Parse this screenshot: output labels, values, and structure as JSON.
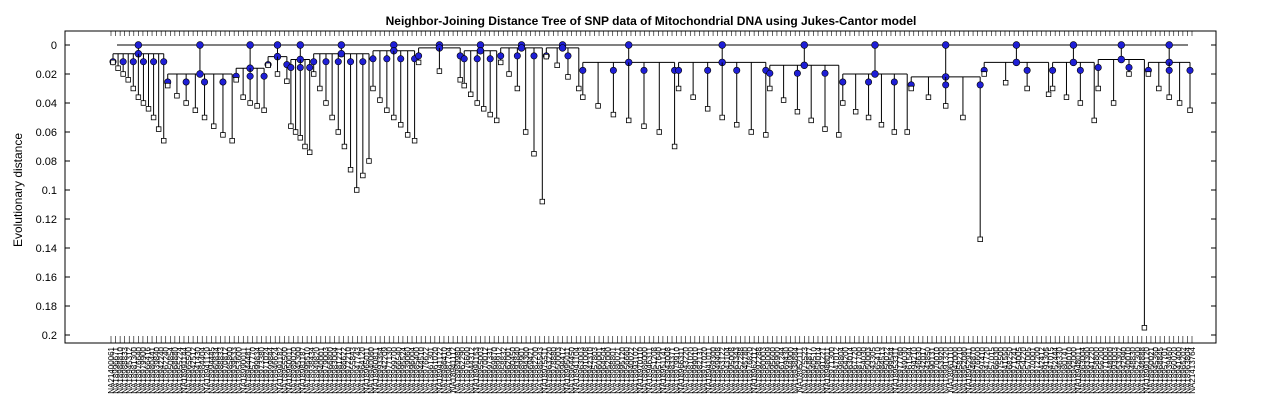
{
  "chart_data": {
    "type": "dendrogram",
    "title": "Neighbor-Joining Distance Tree of SNP data of Mitochondrial DNA using Jukes-Cantor model",
    "xlabel": "",
    "ylabel": "Evolutionary distance",
    "ylim": [
      0,
      0.205
    ],
    "y_reversed": true,
    "yticks": [
      0,
      0.02,
      0.04,
      0.06,
      0.08,
      0.1,
      0.12,
      0.14,
      0.16,
      0.18,
      0.2
    ],
    "ytick_labels": [
      "0",
      "0.02",
      "0.04",
      "0.06",
      "0.08",
      "0.1",
      "0.12",
      "0.14",
      "0.16",
      "0.18",
      "0.2"
    ],
    "leaf_count": 238,
    "grid": false,
    "colors": {
      "internal_node": "#1f1fd6",
      "leaf": "#ffffff",
      "branch": "#000000"
    },
    "leaf_labels": [
      "NA21400061",
      "NA18996671",
      "NA18988810",
      "NA18988833",
      "NA18945312",
      "NA18981300",
      "NA18976640",
      "NA18979900",
      "NA18966416",
      "NA18980441",
      "NA18939840",
      "NA18942240",
      "NA18962240",
      "NA18950854",
      "NA18968880",
      "NA18955224",
      "NA18991144",
      "NA18965500",
      "NA18942512",
      "NA18941430",
      "NA18984404",
      "NA18941120",
      "NA18994445",
      "NA18960834",
      "NA18988833",
      "NA18970812",
      "NA18985800",
      "NA18939533",
      "NA18953600",
      "NA18990011",
      "NA18944481",
      "NA18957770",
      "NA18999834",
      "NA18973380",
      "NA18971024",
      "NA18999844",
      "NA18946624",
      "NA18991182",
      "NA18955500",
      "NA18950011",
      "NA18989020",
      "NA18945300",
      "NA18981187",
      "NA18995510",
      "NA18938434",
      "NA18949820",
      "NA18940001",
      "NA18979003",
      "NA18966800",
      "NA18983004",
      "NA18981221",
      "NA18986622",
      "NA18972210",
      "NA18955843",
      "NA18947743",
      "NA18964120",
      "NA18965011",
      "NA18940060",
      "NA18960811",
      "NA18993354",
      "NA18942209",
      "NA18977130",
      "NA18999700",
      "NA18966540",
      "NA18995524",
      "NA18939060",
      "NA18996004",
      "NA18985400",
      "NA18944510",
      "NA18976622",
      "NA18961301",
      "NA18961020",
      "NA18941122",
      "NA18986410",
      "NA18987704",
      "NA18941112",
      "NA18989980",
      "NA18962290",
      "NA18976600",
      "NA18944312",
      "NA18991153",
      "NA18955003",
      "NA18970012",
      "NA18997331",
      "NA18969870",
      "NA18989912",
      "NA18958832",
      "NA18962001",
      "NA18980450",
      "NA18993840",
      "NA18989901",
      "NA18994300",
      "NA18969421",
      "NA18982200",
      "NA18985543",
      "NA18975511",
      "NA18963220",
      "NA18978880",
      "NA18950003",
      "NA18994412",
      "NA18995011",
      "NA18964450",
      "NA18941104",
      "NA18963003",
      "NA18991008",
      "NA18942310",
      "NA18957803",
      "NA18960001",
      "NA18964504",
      "NA18952000",
      "NA18988801",
      "NA18980021",
      "NA18995120",
      "NA18956660",
      "NA18940022",
      "NA18993102",
      "NA18970110",
      "NA18986000",
      "NA18946311",
      "NA18951208",
      "NA18957640",
      "NA18951141",
      "NA18943008",
      "NA18983371",
      "NA18979910",
      "NA18966311",
      "NA18943220",
      "NA18981020",
      "NA18999010",
      "NA18982131",
      "NA18977020",
      "NA18941011",
      "NA18969300",
      "NA18949408",
      "NA18963122",
      "NA18943104",
      "NA18995008",
      "NA18963343",
      "NA18952288",
      "NA18945780",
      "NA18976820",
      "NA18962112",
      "NA18992288",
      "NA18980003",
      "NA18958009",
      "NA18995600",
      "NA18996900",
      "NA18961244",
      "NA18969430",
      "NA18944900",
      "NA18938884",
      "NA18952111",
      "NA18975523",
      "NA18958877",
      "NA18940510",
      "NA18958014",
      "NA18991221",
      "NA18988011",
      "NA18971300",
      "NA18947012",
      "NA18998804",
      "NA18964200",
      "NA18963014",
      "NA18967720",
      "NA18987700",
      "NA18954030",
      "NA18950003",
      "NA18943305",
      "NA18965410",
      "NA18984513",
      "NA18950022",
      "NA18999544",
      "NA18953311",
      "NA18977760",
      "NA18949030",
      "NA18961544",
      "NA18994210",
      "NA18946630",
      "NA18942017",
      "NA18943850",
      "NA18990131",
      "NA18970010",
      "NA18953920",
      "NA18991320",
      "NA18961110",
      "NA18942000",
      "NA18958210",
      "NA18952080",
      "NA18952911",
      "NA18946870",
      "NA18976600",
      "NA18997410",
      "NA18947720",
      "NA18957015",
      "NA18966030",
      "NA18975500",
      "NA18941550",
      "NA18968250",
      "NA18971241",
      "NA18954005",
      "NA18954220",
      "NA18957005",
      "NA18970001",
      "NA18972200",
      "NA18942412",
      "NA18991305",
      "NA18947015",
      "NA18952444",
      "NA18946330",
      "NA18980141",
      "NA18968010",
      "NA18942000",
      "NA18948011",
      "NA18963004",
      "NA18983300",
      "NA18941220",
      "NA18958800",
      "NA18956200",
      "NA18971003",
      "NA18948000",
      "NA18993003",
      "NA18953302",
      "NA18942940",
      "NA18940010",
      "NA18948830",
      "NA18952300",
      "NA18948888",
      "NA18991120",
      "NA18950021",
      "NA18945360",
      "NA18968845",
      "NA18957701",
      "NA18939460",
      "NA18960020",
      "NA18941400",
      "NA18965202",
      "NA18963804",
      "NA21413764"
    ],
    "clades": [
      {
        "x1": 0,
        "x2": 24,
        "join": 0.006,
        "tips": [
          0.012,
          0.016,
          0.02,
          0.024,
          0.03,
          0.036,
          0.04,
          0.044,
          0.05,
          0.058,
          0.066
        ]
      },
      {
        "x1": 24,
        "x2": 52,
        "join": 0.02,
        "tips": [
          0.028,
          0.035,
          0.04,
          0.045,
          0.05,
          0.056,
          0.062,
          0.066
        ]
      },
      {
        "x1": 52,
        "x2": 66,
        "join": 0.016,
        "tips": [
          0.024,
          0.036,
          0.04,
          0.042,
          0.045
        ]
      },
      {
        "x1": 66,
        "x2": 76,
        "join": 0.008,
        "tips": [
          0.014,
          0.02,
          0.025
        ]
      },
      {
        "x1": 76,
        "x2": 86,
        "join": 0.01,
        "tips": [
          0.056,
          0.06,
          0.064,
          0.07,
          0.074
        ]
      },
      {
        "x1": 86,
        "x2": 110,
        "join": 0.006,
        "tips": [
          0.02,
          0.03,
          0.04,
          0.05,
          0.06,
          0.07,
          0.086,
          0.1,
          0.09,
          0.08
        ]
      },
      {
        "x1": 110,
        "x2": 130,
        "join": 0.004,
        "tips": [
          0.03,
          0.038,
          0.045,
          0.05,
          0.055,
          0.062,
          0.066
        ]
      },
      {
        "x1": 130,
        "x2": 150,
        "join": 0.002,
        "tips": [
          0.012,
          0.018,
          0.024
        ]
      },
      {
        "x1": 150,
        "x2": 165,
        "join": 0.004,
        "tips": [
          0.028,
          0.034,
          0.04,
          0.044,
          0.048,
          0.052
        ]
      },
      {
        "x1": 165,
        "x2": 185,
        "join": 0.002,
        "tips": [
          0.012,
          0.02,
          0.03,
          0.06,
          0.075,
          0.108
        ]
      },
      {
        "x1": 185,
        "x2": 200,
        "join": 0.002,
        "tips": [
          0.008,
          0.014,
          0.022,
          0.03
        ]
      },
      {
        "x1": 200,
        "x2": 240,
        "join": 0.012,
        "tips": [
          0.036,
          0.042,
          0.048,
          0.052,
          0.056,
          0.06,
          0.07
        ]
      },
      {
        "x1": 240,
        "x2": 280,
        "join": 0.012,
        "tips": [
          0.03,
          0.036,
          0.044,
          0.05,
          0.055,
          0.06,
          0.062
        ]
      },
      {
        "x1": 280,
        "x2": 310,
        "join": 0.014,
        "tips": [
          0.03,
          0.038,
          0.046,
          0.052,
          0.058,
          0.062
        ]
      },
      {
        "x1": 310,
        "x2": 340,
        "join": 0.02,
        "tips": [
          0.04,
          0.046,
          0.05,
          0.055,
          0.06,
          0.06
        ]
      },
      {
        "x1": 340,
        "x2": 370,
        "join": 0.022,
        "tips": [
          0.03,
          0.036,
          0.042,
          0.05,
          0.134
        ]
      },
      {
        "x1": 370,
        "x2": 400,
        "join": 0.012,
        "tips": [
          0.02,
          0.026,
          0.03,
          0.034
        ]
      },
      {
        "x1": 400,
        "x2": 420,
        "join": 0.012,
        "tips": [
          0.03,
          0.036,
          0.04,
          0.052
        ]
      },
      {
        "x1": 420,
        "x2": 440,
        "join": 0.01,
        "tips": [
          0.03,
          0.04,
          0.02,
          0.195
        ]
      },
      {
        "x1": 440,
        "x2": 460,
        "join": 0.012,
        "tips": [
          0.02,
          0.03,
          0.036,
          0.04,
          0.045
        ]
      }
    ]
  }
}
